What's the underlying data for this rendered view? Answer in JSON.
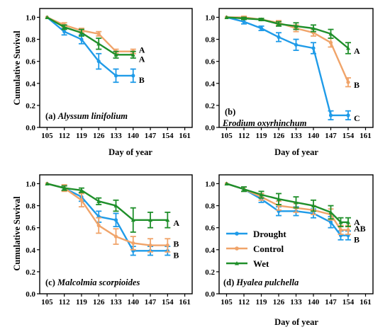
{
  "figure": {
    "legend": {
      "panel": 3,
      "entries": [
        {
          "name": "Drought",
          "color": "#1f9be8"
        },
        {
          "name": "Control",
          "color": "#f0a46a"
        },
        {
          "name": "Wet",
          "color": "#1f8f2a"
        }
      ]
    }
  },
  "chart_data": [
    {
      "type": "line",
      "panel_label": "(a)",
      "species": "Alyssum linifolium",
      "xlabel": "Day of year",
      "ylabel": "Cumulative Suvival",
      "xlim": [
        102,
        164
      ],
      "ylim": [
        0.0,
        1.08
      ],
      "x_ticks": [
        "105",
        "112",
        "119",
        "126",
        "133",
        "140",
        "147",
        "154",
        "161"
      ],
      "y_ticks": [
        "0.0",
        "0.2",
        "0.4",
        "0.6",
        "0.8",
        "1.0"
      ],
      "series": [
        {
          "name": "Drought",
          "color": "#1f9be8",
          "x": [
            105,
            112,
            119,
            126,
            133,
            140
          ],
          "y": [
            1.0,
            0.87,
            0.8,
            0.6,
            0.47,
            0.47
          ],
          "err": [
            0,
            0.03,
            0.04,
            0.07,
            0.06,
            0.06
          ],
          "letter": "B"
        },
        {
          "name": "Control",
          "color": "#f0a46a",
          "x": [
            105,
            112,
            119,
            126,
            133,
            140
          ],
          "y": [
            1.0,
            0.93,
            0.88,
            0.85,
            0.69,
            0.69
          ],
          "err": [
            0,
            0.02,
            0.02,
            0.02,
            0.02,
            0.02
          ],
          "letter": "A"
        },
        {
          "name": "Wet",
          "color": "#1f8f2a",
          "x": [
            105,
            112,
            119,
            126,
            133,
            140
          ],
          "y": [
            1.0,
            0.91,
            0.86,
            0.76,
            0.66,
            0.66
          ],
          "err": [
            0,
            0.02,
            0.03,
            0.05,
            0.03,
            0.03
          ],
          "letter": "A"
        }
      ]
    },
    {
      "type": "line",
      "panel_label": "(b)",
      "species": "Erodium oxyrhinchum",
      "xlabel": "Day of year",
      "ylabel": "",
      "xlim": [
        102,
        164
      ],
      "ylim": [
        0.0,
        1.08
      ],
      "x_ticks": [
        "105",
        "112",
        "119",
        "126",
        "133",
        "140",
        "147",
        "154",
        "161"
      ],
      "y_ticks": [
        "0.0",
        "0.2",
        "0.4",
        "0.6",
        "0.8",
        "1.0"
      ],
      "series": [
        {
          "name": "Drought",
          "color": "#1f9be8",
          "x": [
            105,
            112,
            119,
            126,
            133,
            140,
            147,
            154
          ],
          "y": [
            1.0,
            0.96,
            0.9,
            0.82,
            0.75,
            0.72,
            0.11,
            0.11
          ],
          "err": [
            0,
            0.02,
            0.02,
            0.04,
            0.05,
            0.05,
            0.04,
            0.04
          ],
          "letter": "C"
        },
        {
          "name": "Control",
          "color": "#f0a46a",
          "x": [
            105,
            112,
            119,
            126,
            133,
            140,
            147,
            154
          ],
          "y": [
            1.0,
            1.0,
            0.98,
            0.95,
            0.9,
            0.86,
            0.77,
            0.41
          ],
          "err": [
            0,
            0.01,
            0.01,
            0.02,
            0.03,
            0.03,
            0.04,
            0.04
          ],
          "letter": "B"
        },
        {
          "name": "Wet",
          "color": "#1f8f2a",
          "x": [
            105,
            112,
            119,
            126,
            133,
            140,
            147,
            154
          ],
          "y": [
            1.0,
            0.99,
            0.98,
            0.94,
            0.92,
            0.9,
            0.85,
            0.72
          ],
          "err": [
            0,
            0.01,
            0.01,
            0.02,
            0.03,
            0.03,
            0.04,
            0.05
          ],
          "letter": "A"
        }
      ]
    },
    {
      "type": "line",
      "panel_label": "(c)",
      "species": "Malcolmia scorpioides",
      "xlabel": "",
      "ylabel": "Cumulative Suvival",
      "xlim": [
        102,
        164
      ],
      "ylim": [
        0.0,
        1.08
      ],
      "x_ticks": [
        "105",
        "112",
        "119",
        "126",
        "133",
        "140",
        "147",
        "154",
        "161"
      ],
      "y_ticks": [
        "0.0",
        "0.2",
        "0.4",
        "0.6",
        "0.8",
        "1.0"
      ],
      "series": [
        {
          "name": "Drought",
          "color": "#1f9be8",
          "x": [
            105,
            112,
            119,
            126,
            133,
            140,
            147,
            154
          ],
          "y": [
            1.0,
            0.96,
            0.88,
            0.7,
            0.67,
            0.39,
            0.39,
            0.39
          ],
          "err": [
            0,
            0.02,
            0.04,
            0.05,
            0.06,
            0.04,
            0.04,
            0.04
          ],
          "letter": "B"
        },
        {
          "name": "Control",
          "color": "#f0a46a",
          "x": [
            105,
            112,
            119,
            126,
            133,
            140,
            147,
            154
          ],
          "y": [
            1.0,
            0.96,
            0.85,
            0.62,
            0.52,
            0.46,
            0.44,
            0.44
          ],
          "err": [
            0,
            0.03,
            0.06,
            0.07,
            0.07,
            0.06,
            0.06,
            0.06
          ],
          "letter": "B"
        },
        {
          "name": "Wet",
          "color": "#1f8f2a",
          "x": [
            105,
            112,
            119,
            126,
            133,
            140,
            147,
            154
          ],
          "y": [
            1.0,
            0.96,
            0.94,
            0.84,
            0.8,
            0.67,
            0.67,
            0.67
          ],
          "err": [
            0,
            0.02,
            0.02,
            0.03,
            0.05,
            0.11,
            0.07,
            0.07
          ],
          "letter": "A"
        }
      ]
    },
    {
      "type": "line",
      "panel_label": "(d)",
      "species": "Hyalea pulchella",
      "xlabel": "Day of year",
      "ylabel": "",
      "xlim": [
        102,
        164
      ],
      "ylim": [
        0.0,
        1.08
      ],
      "x_ticks": [
        "105",
        "112",
        "119",
        "126",
        "133",
        "140",
        "147",
        "154",
        "161"
      ],
      "y_ticks": [
        "0.0",
        "0.2",
        "0.4",
        "0.6",
        "0.8",
        "1.0"
      ],
      "series": [
        {
          "name": "Drought",
          "color": "#1f9be8",
          "x": [
            105,
            112,
            119,
            126,
            133,
            140,
            147,
            151,
            154
          ],
          "y": [
            1.0,
            0.95,
            0.86,
            0.75,
            0.75,
            0.73,
            0.65,
            0.53,
            0.53
          ],
          "err": [
            0,
            0.02,
            0.03,
            0.04,
            0.04,
            0.04,
            0.05,
            0.04,
            0.04
          ],
          "letter": "B"
        },
        {
          "name": "Control",
          "color": "#f0a46a",
          "x": [
            105,
            112,
            119,
            126,
            133,
            140,
            147,
            151,
            154
          ],
          "y": [
            1.0,
            0.95,
            0.88,
            0.8,
            0.78,
            0.76,
            0.72,
            0.58,
            0.58
          ],
          "err": [
            0,
            0.02,
            0.03,
            0.04,
            0.04,
            0.04,
            0.05,
            0.04,
            0.04
          ],
          "letter": "AB"
        },
        {
          "name": "Wet",
          "color": "#1f8f2a",
          "x": [
            105,
            112,
            119,
            126,
            133,
            140,
            147,
            151,
            154
          ],
          "y": [
            1.0,
            0.95,
            0.9,
            0.86,
            0.83,
            0.8,
            0.74,
            0.65,
            0.65
          ],
          "err": [
            0,
            0.02,
            0.03,
            0.05,
            0.05,
            0.05,
            0.06,
            0.04,
            0.04
          ],
          "letter": "A"
        }
      ]
    }
  ]
}
